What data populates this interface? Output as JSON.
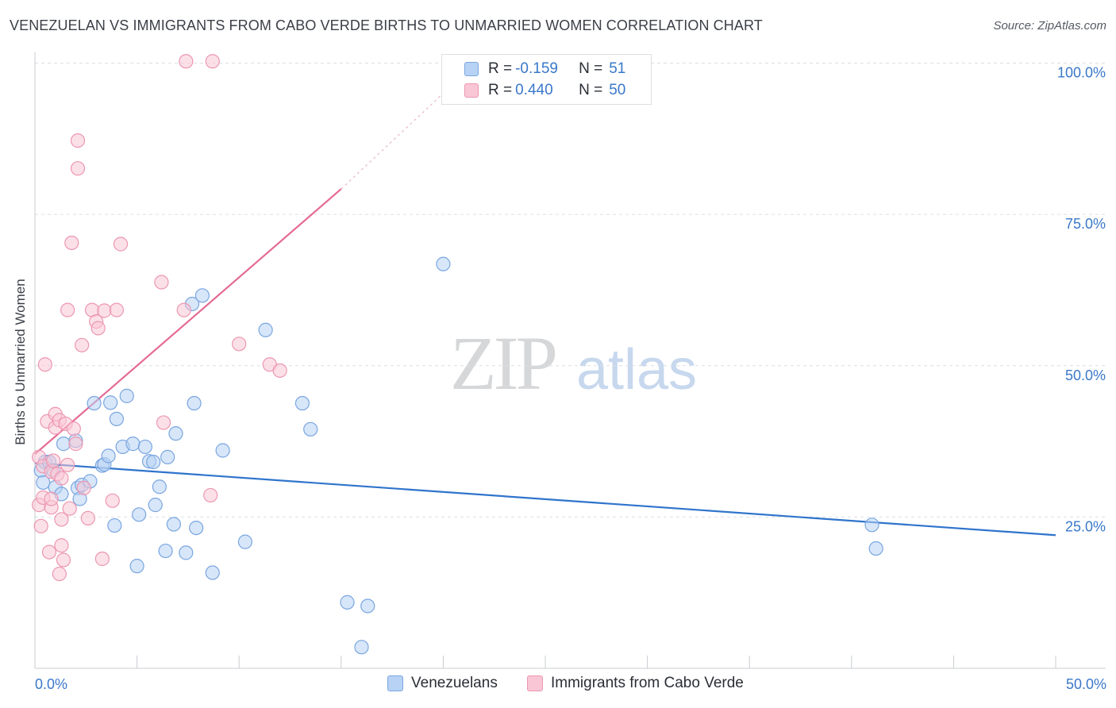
{
  "title": "VENEZUELAN VS IMMIGRANTS FROM CABO VERDE BIRTHS TO UNMARRIED WOMEN CORRELATION CHART",
  "source": "Source: ZipAtlas.com",
  "watermark": {
    "zip": "ZIP",
    "atlas": "atlas"
  },
  "legend_box": {
    "rows": [
      {
        "r_label": "R = ",
        "r_value": "-0.159",
        "n_label": "N = ",
        "n_value": "51",
        "color": "#b7d2f4",
        "stroke": "#7aa6e0"
      },
      {
        "r_label": "R = ",
        "r_value": "0.440",
        "n_label": "N = ",
        "n_value": "50",
        "color": "#f9c6d5",
        "stroke": "#ec97b2"
      }
    ]
  },
  "bottom_legend": [
    {
      "label": "Venezuelans",
      "color": "#b7d2f4",
      "stroke": "#7aa6e0"
    },
    {
      "label": "Immigrants from Cabo Verde",
      "color": "#f9c6d5",
      "stroke": "#ec97b2"
    }
  ],
  "x_tick_labels": {
    "min": "0.0%",
    "max": "50.0%"
  },
  "chart_data": {
    "type": "scatter",
    "title": "VENEZUELAN VS IMMIGRANTS FROM CABO VERDE BIRTHS TO UNMARRIED WOMEN CORRELATION CHART",
    "xlabel": "",
    "ylabel": "Births to Unmarried Women",
    "xlim": [
      0,
      50
    ],
    "ylim": [
      0,
      104
    ],
    "y_ticks": [
      {
        "value": 100,
        "label": "100.0%"
      },
      {
        "value": 75,
        "label": "75.0%"
      },
      {
        "value": 50,
        "label": "50.0%"
      },
      {
        "value": 25,
        "label": "25.0%"
      }
    ],
    "grid": true,
    "legend_position": "top-center",
    "series": [
      {
        "name": "Venezuelans",
        "color": "#b7d2f4",
        "stroke": "#7aa6e0",
        "trend_color": "#2f74cc",
        "trend": {
          "x0": 0,
          "y0": 33.9,
          "x1": 50,
          "y1": 22.0,
          "dash_from": null
        },
        "points": [
          [
            0.3,
            32.7
          ],
          [
            0.4,
            30.7
          ],
          [
            0.5,
            34.1
          ],
          [
            0.7,
            34.1
          ],
          [
            0.9,
            32.7
          ],
          [
            1.0,
            29.9
          ],
          [
            1.3,
            28.8
          ],
          [
            1.4,
            37.1
          ],
          [
            2.0,
            37.6
          ],
          [
            2.1,
            29.8
          ],
          [
            2.2,
            28.0
          ],
          [
            2.3,
            30.3
          ],
          [
            2.7,
            30.9
          ],
          [
            2.9,
            43.8
          ],
          [
            3.3,
            33.5
          ],
          [
            3.4,
            33.7
          ],
          [
            3.6,
            35.1
          ],
          [
            3.7,
            43.9
          ],
          [
            3.9,
            23.6
          ],
          [
            4.0,
            41.2
          ],
          [
            4.3,
            36.6
          ],
          [
            4.5,
            45.0
          ],
          [
            4.8,
            37.1
          ],
          [
            5.0,
            16.9
          ],
          [
            5.1,
            25.4
          ],
          [
            5.4,
            36.6
          ],
          [
            5.6,
            34.2
          ],
          [
            5.8,
            34.1
          ],
          [
            5.9,
            27.0
          ],
          [
            6.1,
            30.0
          ],
          [
            6.4,
            19.4
          ],
          [
            6.5,
            34.9
          ],
          [
            6.8,
            23.8
          ],
          [
            6.9,
            38.8
          ],
          [
            7.4,
            19.1
          ],
          [
            7.7,
            60.2
          ],
          [
            7.8,
            43.8
          ],
          [
            7.9,
            23.2
          ],
          [
            8.2,
            61.6
          ],
          [
            8.7,
            15.8
          ],
          [
            9.2,
            36.0
          ],
          [
            10.3,
            20.9
          ],
          [
            11.3,
            55.9
          ],
          [
            13.1,
            43.8
          ],
          [
            13.5,
            39.5
          ],
          [
            15.3,
            10.9
          ],
          [
            16.0,
            3.5
          ],
          [
            16.3,
            10.3
          ],
          [
            20.0,
            66.8
          ],
          [
            41.0,
            23.7
          ],
          [
            41.2,
            19.8
          ]
        ]
      },
      {
        "name": "Immigrants from Cabo Verde",
        "color": "#f9c6d5",
        "stroke": "#ec97b2",
        "trend_color": "#e46a93",
        "trend": {
          "x0": 0,
          "y0": 35.4,
          "x1": 15,
          "y1": 79.2,
          "dash_to_x": 20,
          "dash_to_y": 95
        },
        "points": [
          [
            0.2,
            34.9
          ],
          [
            0.2,
            27.0
          ],
          [
            0.3,
            23.5
          ],
          [
            0.4,
            28.2
          ],
          [
            0.4,
            33.4
          ],
          [
            0.5,
            50.2
          ],
          [
            0.6,
            40.8
          ],
          [
            0.7,
            19.2
          ],
          [
            0.8,
            26.6
          ],
          [
            0.8,
            32.5
          ],
          [
            0.8,
            28.0
          ],
          [
            0.9,
            34.3
          ],
          [
            1.0,
            42.0
          ],
          [
            1.0,
            39.8
          ],
          [
            1.1,
            32.1
          ],
          [
            1.2,
            15.6
          ],
          [
            1.2,
            41.0
          ],
          [
            1.3,
            31.4
          ],
          [
            1.3,
            20.3
          ],
          [
            1.4,
            17.9
          ],
          [
            1.5,
            40.4
          ],
          [
            1.6,
            33.6
          ],
          [
            1.6,
            59.2
          ],
          [
            1.7,
            26.4
          ],
          [
            1.8,
            70.3
          ],
          [
            1.9,
            39.6
          ],
          [
            2.0,
            37.1
          ],
          [
            2.1,
            87.2
          ],
          [
            2.1,
            82.6
          ],
          [
            2.3,
            53.4
          ],
          [
            2.4,
            29.8
          ],
          [
            2.6,
            24.8
          ],
          [
            2.8,
            59.2
          ],
          [
            3.0,
            57.3
          ],
          [
            3.1,
            56.2
          ],
          [
            3.3,
            18.1
          ],
          [
            3.4,
            59.1
          ],
          [
            3.8,
            27.7
          ],
          [
            4.0,
            59.2
          ],
          [
            4.2,
            70.1
          ],
          [
            6.2,
            63.8
          ],
          [
            6.3,
            40.6
          ],
          [
            7.3,
            59.2
          ],
          [
            7.4,
            100.3
          ],
          [
            8.6,
            28.6
          ],
          [
            8.7,
            100.3
          ],
          [
            10.0,
            53.6
          ],
          [
            11.5,
            50.2
          ],
          [
            12.0,
            49.2
          ],
          [
            1.3,
            24.6
          ]
        ]
      }
    ]
  }
}
